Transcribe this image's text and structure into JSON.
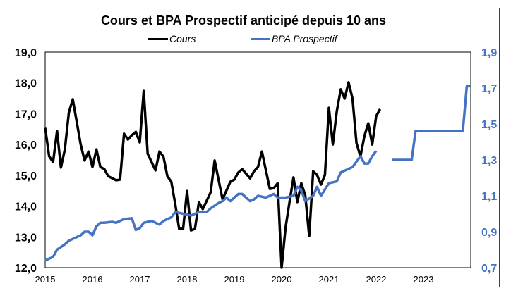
{
  "chart_data": {
    "type": "line",
    "title": "Cours et BPA Prospectif anticipé depuis 10 ans",
    "legend": {
      "placement": "top",
      "entries": [
        "Cours",
        "BPA Prospectif"
      ]
    },
    "x_axis": {
      "type": "date",
      "range": [
        "2015-01",
        "2024-01"
      ],
      "tick_labels": [
        "2015",
        "2016",
        "2017",
        "2018",
        "2019",
        "2020",
        "2021",
        "2022",
        "2023"
      ]
    },
    "y_left": {
      "range": [
        12,
        19
      ],
      "tick_labels": [
        "12,0",
        "13,0",
        "14,0",
        "15,0",
        "16,0",
        "17,0",
        "18,0",
        "19,0"
      ],
      "color": "#000000"
    },
    "y_right": {
      "range": [
        0.7,
        1.9
      ],
      "tick_labels": [
        "0,7",
        "0,9",
        "1,1",
        "1,3",
        "1,5",
        "1,7",
        "1,9"
      ],
      "color": "#4472C4"
    },
    "grid": false,
    "series": [
      {
        "name": "Cours",
        "axis": "left",
        "color": "#000000",
        "points": [
          [
            "2015-01",
            16.54
          ],
          [
            "2015-02",
            15.62
          ],
          [
            "2015-03",
            15.43
          ],
          [
            "2015-04",
            16.44
          ],
          [
            "2015-05",
            15.25
          ],
          [
            "2015-06",
            15.84
          ],
          [
            "2015-07",
            17.03
          ],
          [
            "2015-08",
            17.47
          ],
          [
            "2015-10",
            16.0
          ],
          [
            "2015-11",
            15.48
          ],
          [
            "2015-12",
            15.77
          ],
          [
            "2016-01",
            15.27
          ],
          [
            "2016-02",
            15.84
          ],
          [
            "2016-03",
            15.27
          ],
          [
            "2016-04",
            15.2
          ],
          [
            "2016-05",
            14.97
          ],
          [
            "2016-07",
            14.84
          ],
          [
            "2016-08",
            14.86
          ],
          [
            "2016-09",
            16.35
          ],
          [
            "2016-10",
            16.16
          ],
          [
            "2016-11",
            16.3
          ],
          [
            "2016-12",
            16.41
          ],
          [
            "2017-01",
            16.07
          ],
          [
            "2017-02",
            17.74
          ],
          [
            "2017-03",
            15.7
          ],
          [
            "2017-05",
            15.16
          ],
          [
            "2017-06",
            15.77
          ],
          [
            "2017-07",
            15.61
          ],
          [
            "2017-08",
            14.97
          ],
          [
            "2017-09",
            14.79
          ],
          [
            "2017-10",
            14.06
          ],
          [
            "2017-11",
            13.26
          ],
          [
            "2017-12",
            13.26
          ],
          [
            "2018-01",
            14.49
          ],
          [
            "2018-02",
            13.21
          ],
          [
            "2018-03",
            13.26
          ],
          [
            "2018-04",
            14.13
          ],
          [
            "2018-05",
            13.9
          ],
          [
            "2018-07",
            14.45
          ],
          [
            "2018-08",
            15.48
          ],
          [
            "2018-10",
            14.22
          ],
          [
            "2018-12",
            14.79
          ],
          [
            "2019-01",
            14.86
          ],
          [
            "2019-02",
            15.09
          ],
          [
            "2019-03",
            15.2
          ],
          [
            "2019-05",
            14.9
          ],
          [
            "2019-06",
            15.13
          ],
          [
            "2019-07",
            15.27
          ],
          [
            "2019-08",
            15.77
          ],
          [
            "2019-10",
            14.56
          ],
          [
            "2019-11",
            14.58
          ],
          [
            "2019-12",
            14.74
          ],
          [
            "2020-01",
            12.0
          ],
          [
            "2020-02",
            13.3
          ],
          [
            "2020-03",
            14.13
          ],
          [
            "2020-04",
            14.93
          ],
          [
            "2020-05",
            14.13
          ],
          [
            "2020-06",
            14.74
          ],
          [
            "2020-07",
            14.35
          ],
          [
            "2020-08",
            13.03
          ],
          [
            "2020-09",
            15.13
          ],
          [
            "2020-10",
            15.01
          ],
          [
            "2020-11",
            14.7
          ],
          [
            "2020-12",
            15.01
          ],
          [
            "2021-01",
            17.19
          ],
          [
            "2021-02",
            16.0
          ],
          [
            "2021-03",
            17.08
          ],
          [
            "2021-04",
            17.79
          ],
          [
            "2021-05",
            17.49
          ],
          [
            "2021-06",
            18.02
          ],
          [
            "2021-07",
            17.49
          ],
          [
            "2021-08",
            16.05
          ],
          [
            "2021-09",
            15.61
          ],
          [
            "2021-10",
            16.27
          ],
          [
            "2021-11",
            16.69
          ],
          [
            "2021-12",
            16.0
          ],
          [
            "2022-01",
            16.92
          ],
          [
            "2022-02",
            17.15
          ]
        ]
      },
      {
        "name": "BPA Prospectif",
        "axis": "right",
        "color": "#4472C4",
        "points": [
          [
            "2015-01",
            0.74
          ],
          [
            "2015-03",
            0.76
          ],
          [
            "2015-04",
            0.8
          ],
          [
            "2015-06",
            0.83
          ],
          [
            "2015-07",
            0.85
          ],
          [
            "2015-08",
            0.86
          ],
          [
            "2015-10",
            0.88
          ],
          [
            "2015-11",
            0.9
          ],
          [
            "2015-12",
            0.9
          ],
          [
            "2016-01",
            0.88
          ],
          [
            "2016-02",
            0.93
          ],
          [
            "2016-03",
            0.95
          ],
          [
            "2016-04",
            0.95
          ],
          [
            "2016-06",
            0.955
          ],
          [
            "2016-07",
            0.95
          ],
          [
            "2016-09",
            0.97
          ],
          [
            "2016-11",
            0.975
          ],
          [
            "2016-12",
            0.91
          ],
          [
            "2017-01",
            0.92
          ],
          [
            "2017-02",
            0.95
          ],
          [
            "2017-04",
            0.96
          ],
          [
            "2017-05",
            0.95
          ],
          [
            "2017-06",
            0.94
          ],
          [
            "2017-07",
            0.96
          ],
          [
            "2017-09",
            0.98
          ],
          [
            "2017-10",
            1.01
          ],
          [
            "2017-12",
            1.0
          ],
          [
            "2018-02",
            0.99
          ],
          [
            "2018-03",
            1.0
          ],
          [
            "2018-04",
            1.01
          ],
          [
            "2018-06",
            1.01
          ],
          [
            "2018-07",
            1.03
          ],
          [
            "2018-09",
            1.06
          ],
          [
            "2018-10",
            1.07
          ],
          [
            "2018-11",
            1.09
          ],
          [
            "2018-12",
            1.07
          ],
          [
            "2019-02",
            1.11
          ],
          [
            "2019-03",
            1.11
          ],
          [
            "2019-05",
            1.07
          ],
          [
            "2019-06",
            1.08
          ],
          [
            "2019-07",
            1.1
          ],
          [
            "2019-09",
            1.09
          ],
          [
            "2019-11",
            1.11
          ],
          [
            "2019-12",
            1.09
          ],
          [
            "2020-02",
            1.09
          ],
          [
            "2020-04",
            1.1
          ],
          [
            "2020-05",
            1.15
          ],
          [
            "2020-06",
            1.13
          ],
          [
            "2020-07",
            1.07
          ],
          [
            "2020-09",
            1.1
          ],
          [
            "2020-10",
            1.15
          ],
          [
            "2020-11",
            1.1
          ],
          [
            "2021-01",
            1.17
          ],
          [
            "2021-03",
            1.18
          ],
          [
            "2021-04",
            1.23
          ],
          [
            "2021-05",
            1.24
          ],
          [
            "2021-07",
            1.26
          ],
          [
            "2021-08",
            1.29
          ],
          [
            "2021-09",
            1.32
          ],
          [
            "2021-10",
            1.28
          ],
          [
            "2021-11",
            1.28
          ],
          [
            "2021-12",
            1.32
          ],
          [
            "2022-01",
            1.35
          ]
        ],
        "forecast_points": [
          [
            "2022-05",
            1.3
          ],
          [
            "2022-10",
            1.3
          ],
          [
            "2022-11",
            1.46
          ],
          [
            "2023-11",
            1.46
          ],
          [
            "2023-12",
            1.71
          ],
          [
            "2024-01",
            1.71
          ]
        ]
      }
    ]
  }
}
